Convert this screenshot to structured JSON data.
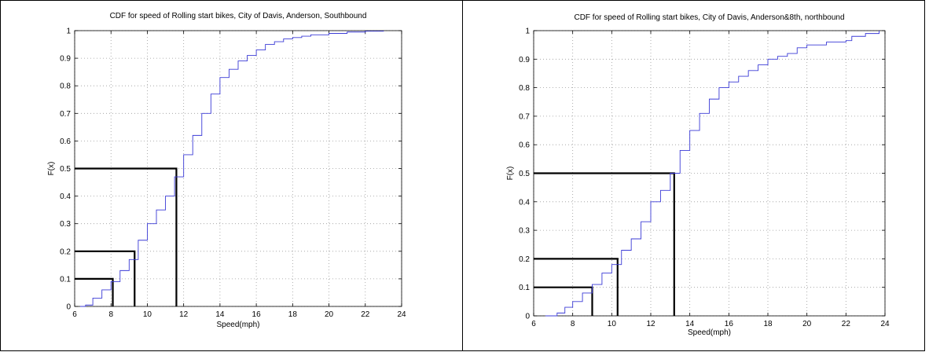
{
  "chart_data": [
    {
      "type": "line",
      "title": "CDF for speed of Rolling start bikes, City of Davis, Anderson, Southbound",
      "xlabel": "Speed(mph)",
      "ylabel": "F(x)",
      "xlim": [
        6,
        24
      ],
      "ylim": [
        0,
        1
      ],
      "xticks": [
        "6",
        "8",
        "10",
        "12",
        "14",
        "16",
        "18",
        "20",
        "22",
        "24"
      ],
      "yticks": [
        "0",
        "0.1",
        "0.2",
        "0.3",
        "0.4",
        "0.5",
        "0.6",
        "0.7",
        "0.8",
        "0.9",
        "1"
      ],
      "grid": true,
      "series": [
        {
          "color": "#3b3bd6",
          "x": [
            6.3,
            6.6,
            7.0,
            7.5,
            8.0,
            8.5,
            9.0,
            9.5,
            10.0,
            10.5,
            11.0,
            11.5,
            12.0,
            12.5,
            13.0,
            13.5,
            14.0,
            14.5,
            15.0,
            15.5,
            16.0,
            16.5,
            17.0,
            17.5,
            18.0,
            18.5,
            19.0,
            20.0,
            21.0,
            22.0,
            23.0
          ],
          "y": [
            0.0,
            0.005,
            0.03,
            0.06,
            0.09,
            0.13,
            0.17,
            0.24,
            0.3,
            0.35,
            0.4,
            0.47,
            0.55,
            0.62,
            0.7,
            0.77,
            0.83,
            0.86,
            0.89,
            0.91,
            0.93,
            0.95,
            0.96,
            0.97,
            0.975,
            0.98,
            0.985,
            0.99,
            0.995,
            0.998,
            1.0
          ]
        }
      ],
      "reference_lines": [
        {
          "x": 8.1,
          "y": 0.1
        },
        {
          "x": 9.3,
          "y": 0.2
        },
        {
          "x": 11.6,
          "y": 0.5
        }
      ]
    },
    {
      "type": "line",
      "title": "CDF for speed of Rolling start bikes, City of Davis, Anderson&8th, northbound",
      "xlabel": "Speed(mph)",
      "ylabel": "F(x)",
      "xlim": [
        6,
        24
      ],
      "ylim": [
        0,
        1
      ],
      "xticks": [
        "6",
        "8",
        "10",
        "12",
        "14",
        "16",
        "18",
        "20",
        "22",
        "24"
      ],
      "yticks": [
        "0",
        "0.1",
        "0.2",
        "0.3",
        "0.4",
        "0.5",
        "0.6",
        "0.7",
        "0.8",
        "0.9",
        "1"
      ],
      "grid": true,
      "series": [
        {
          "color": "#3b3bd6",
          "x": [
            6.6,
            7.2,
            7.6,
            8.0,
            8.5,
            9.0,
            9.5,
            10.0,
            10.5,
            11.0,
            11.5,
            12.0,
            12.5,
            13.0,
            13.5,
            14.0,
            14.5,
            15.0,
            15.5,
            16.0,
            16.5,
            17.0,
            17.5,
            18.0,
            18.5,
            19.0,
            19.5,
            20.0,
            21.0,
            22.0,
            22.3,
            23.0,
            23.7
          ],
          "y": [
            0.0,
            0.01,
            0.03,
            0.05,
            0.08,
            0.11,
            0.15,
            0.18,
            0.23,
            0.27,
            0.33,
            0.4,
            0.44,
            0.5,
            0.58,
            0.65,
            0.71,
            0.76,
            0.8,
            0.82,
            0.84,
            0.86,
            0.88,
            0.9,
            0.91,
            0.92,
            0.94,
            0.95,
            0.96,
            0.965,
            0.98,
            0.99,
            1.0
          ]
        }
      ],
      "reference_lines": [
        {
          "x": 9.0,
          "y": 0.1
        },
        {
          "x": 10.3,
          "y": 0.2
        },
        {
          "x": 13.2,
          "y": 0.5
        }
      ]
    }
  ]
}
